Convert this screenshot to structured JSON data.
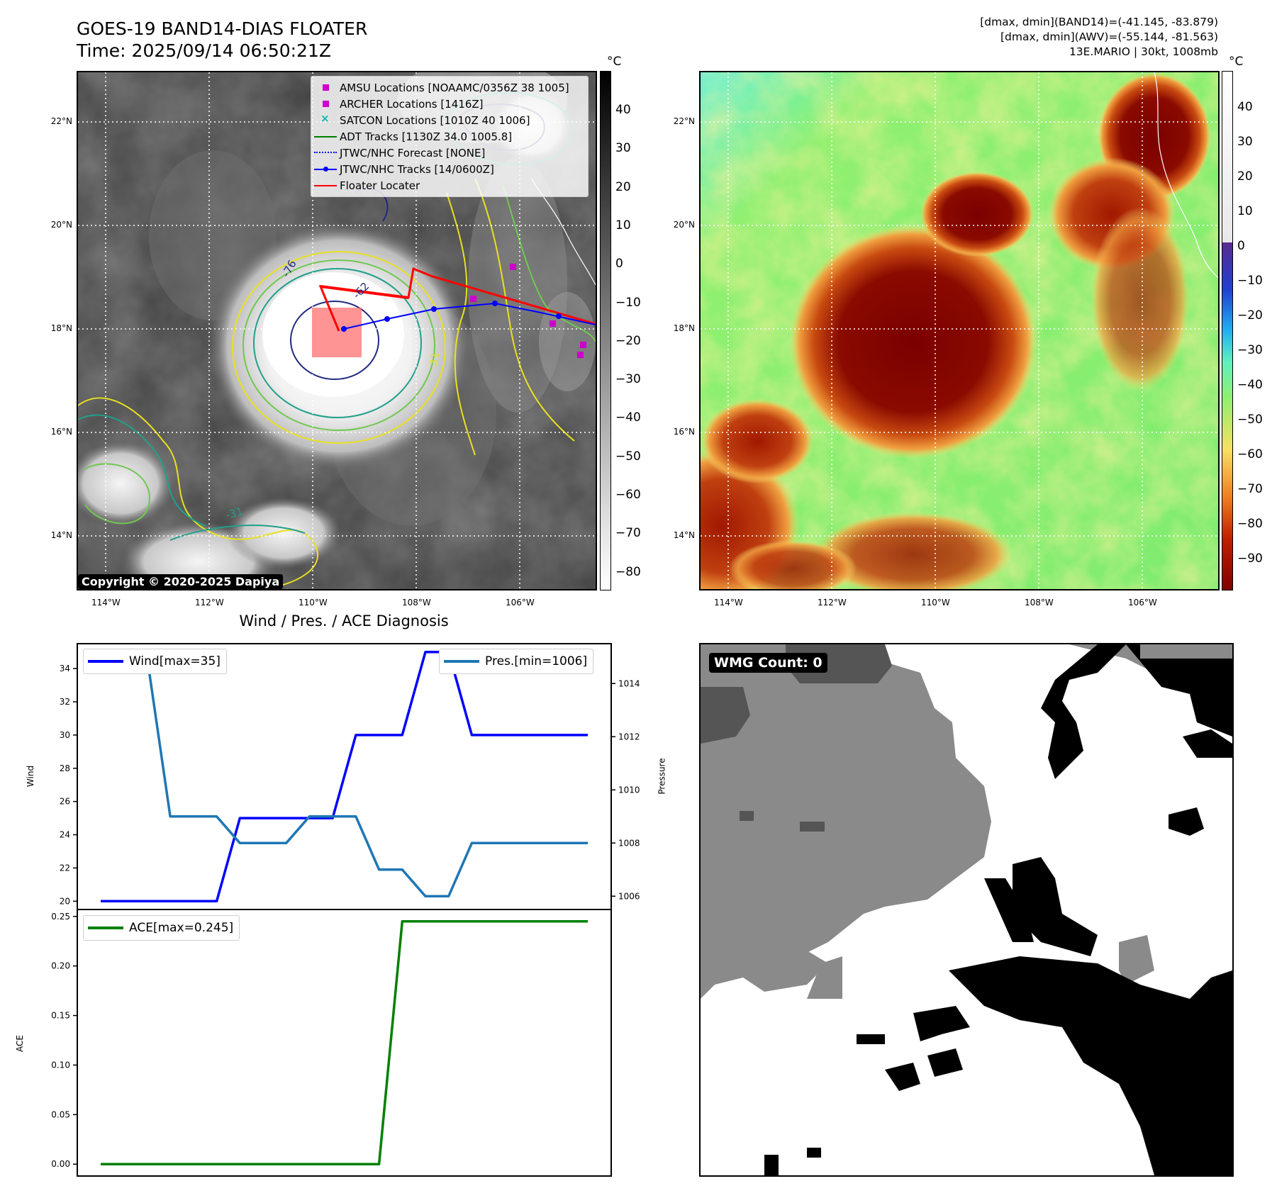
{
  "header": {
    "title_line1": "GOES-19 BAND14-DIAS FLOATER",
    "title_line2": "Time: 2025/09/14 06:50:21Z",
    "info_line1": "[dmax, dmin](BAND14)=(-41.145, -83.879)",
    "info_line2": "[dmax, dmin](AWV)=(-55.144, -81.563)",
    "info_line3": "13E.MARIO | 30kt, 1008mb"
  },
  "map_axes": {
    "lon_ticks": [
      "114°W",
      "112°W",
      "110°W",
      "108°W",
      "106°W"
    ],
    "lat_ticks": [
      "22°N",
      "20°N",
      "18°N",
      "16°N",
      "14°N"
    ]
  },
  "panel_ir": {
    "legend": [
      {
        "label": "AMSU Locations [NOAAMC/0356Z 38 1005]",
        "kind": "square",
        "color": "#cc00cc"
      },
      {
        "label": "ARCHER Locations [1416Z]",
        "kind": "square",
        "color": "#cc00cc"
      },
      {
        "label": "SATCON Locations [1010Z 40 1006]",
        "kind": "x",
        "color": "#00b8b8"
      },
      {
        "label": "ADT Tracks [1130Z 34.0 1005.8]",
        "kind": "line",
        "color": "#008000"
      },
      {
        "label": "JTWC/NHC Forecast [NONE]",
        "kind": "dotted",
        "color": "#0000ff"
      },
      {
        "label": "JTWC/NHC Tracks [14/0600Z]",
        "kind": "line-dot",
        "color": "#0000ff"
      },
      {
        "label": "Floater Locater",
        "kind": "line",
        "color": "#ff0000"
      }
    ],
    "contour_labels": [
      "-76",
      "-62",
      "-31",
      "-31"
    ],
    "copyright": "Copyright © 2020-2025 Dapiya",
    "colorbar": {
      "unit": "°C",
      "ticks": [
        "40",
        "30",
        "20",
        "10",
        "0",
        "−10",
        "−20",
        "−30",
        "−40",
        "−50",
        "−60",
        "−70",
        "−80"
      ]
    }
  },
  "panel_awv": {
    "colorbar": {
      "unit": "°C",
      "ticks": [
        "40",
        "30",
        "20",
        "10",
        "0",
        "−10",
        "−20",
        "−30",
        "−40",
        "−50",
        "−60",
        "−70",
        "−80",
        "−90"
      ]
    }
  },
  "panel_wmg": {
    "label": "WMG Count: 0"
  },
  "chart_data": [
    {
      "type": "line",
      "title": "Wind / Pres. / ACE Diagnosis",
      "x": [
        0,
        1,
        2,
        3,
        4,
        5,
        6,
        7,
        8,
        9,
        10,
        11,
        12,
        13,
        14,
        15,
        16,
        17,
        18,
        19,
        20,
        21
      ],
      "series": [
        {
          "name": "Wind[max=35]",
          "axis": "left",
          "color": "#0000ff",
          "values": [
            20,
            20,
            20,
            20,
            20,
            20,
            25,
            25,
            25,
            25,
            25,
            30,
            30,
            30,
            35,
            35,
            30,
            30,
            30,
            30,
            30,
            30
          ]
        },
        {
          "name": "Pres.[min=1006]",
          "axis": "right",
          "color": "#1f77b4",
          "values": [
            1015,
            1015,
            1015,
            1009,
            1009,
            1009,
            1008,
            1008,
            1008,
            1009,
            1009,
            1009,
            1007,
            1007,
            1006,
            1006,
            1008,
            1008,
            1008,
            1008,
            1008,
            1008
          ]
        }
      ],
      "ylabel": "Wind",
      "ylabel_right": "Pressure",
      "ylim": [
        19.5,
        35.5
      ],
      "ylim_right": [
        1005.5,
        1015.5
      ],
      "yticks": [
        "20",
        "22",
        "24",
        "26",
        "28",
        "30",
        "32",
        "34"
      ],
      "yticks_right": [
        "1006",
        "1008",
        "1010",
        "1012",
        "1014"
      ]
    },
    {
      "type": "line",
      "x": [
        0,
        1,
        2,
        3,
        4,
        5,
        6,
        7,
        8,
        9,
        10,
        11,
        12,
        13,
        14,
        15,
        16,
        17,
        18,
        19,
        20,
        21
      ],
      "series": [
        {
          "name": "ACE[max=0.245]",
          "color": "#008000",
          "values": [
            0,
            0,
            0,
            0,
            0,
            0,
            0,
            0,
            0,
            0,
            0,
            0,
            0,
            0.245,
            0.245,
            0.245,
            0.245,
            0.245,
            0.245,
            0.245,
            0.245,
            0.245
          ]
        }
      ],
      "ylabel": "ACE",
      "ylim": [
        -0.012,
        0.257
      ],
      "yticks": [
        "0.00",
        "0.05",
        "0.10",
        "0.15",
        "0.20",
        "0.25"
      ]
    }
  ]
}
